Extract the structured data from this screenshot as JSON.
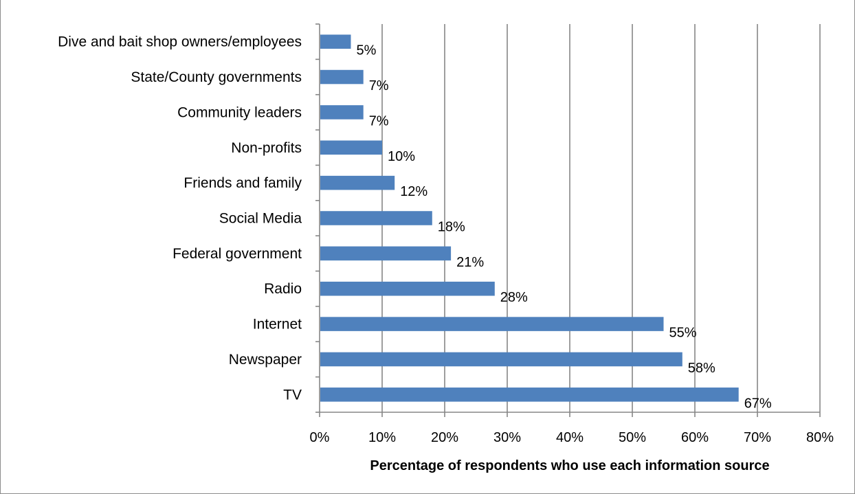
{
  "chart_data": {
    "type": "bar",
    "orientation": "horizontal",
    "categories": [
      "TV",
      "Newspaper",
      "Internet",
      "Radio",
      "Federal government",
      "Social Media",
      "Friends and family",
      "Non-profits",
      "Community leaders",
      "State/County governments",
      "Dive and bait shop owners/employees"
    ],
    "values": [
      67,
      58,
      55,
      28,
      21,
      18,
      12,
      10,
      7,
      7,
      5
    ],
    "data_labels": [
      "67%",
      "58%",
      "55%",
      "28%",
      "21%",
      "18%",
      "12%",
      "10%",
      "7%",
      "7%",
      "5%"
    ],
    "xlabel": "Percentage of respondents who use each information source",
    "ylabel": "",
    "xlim": [
      0,
      80
    ],
    "x_ticks": [
      "0%",
      "10%",
      "20%",
      "30%",
      "40%",
      "50%",
      "60%",
      "70%",
      "80%"
    ],
    "grid": "vertical major gridlines",
    "legend": "none",
    "bar_color": "#4f81bd"
  }
}
